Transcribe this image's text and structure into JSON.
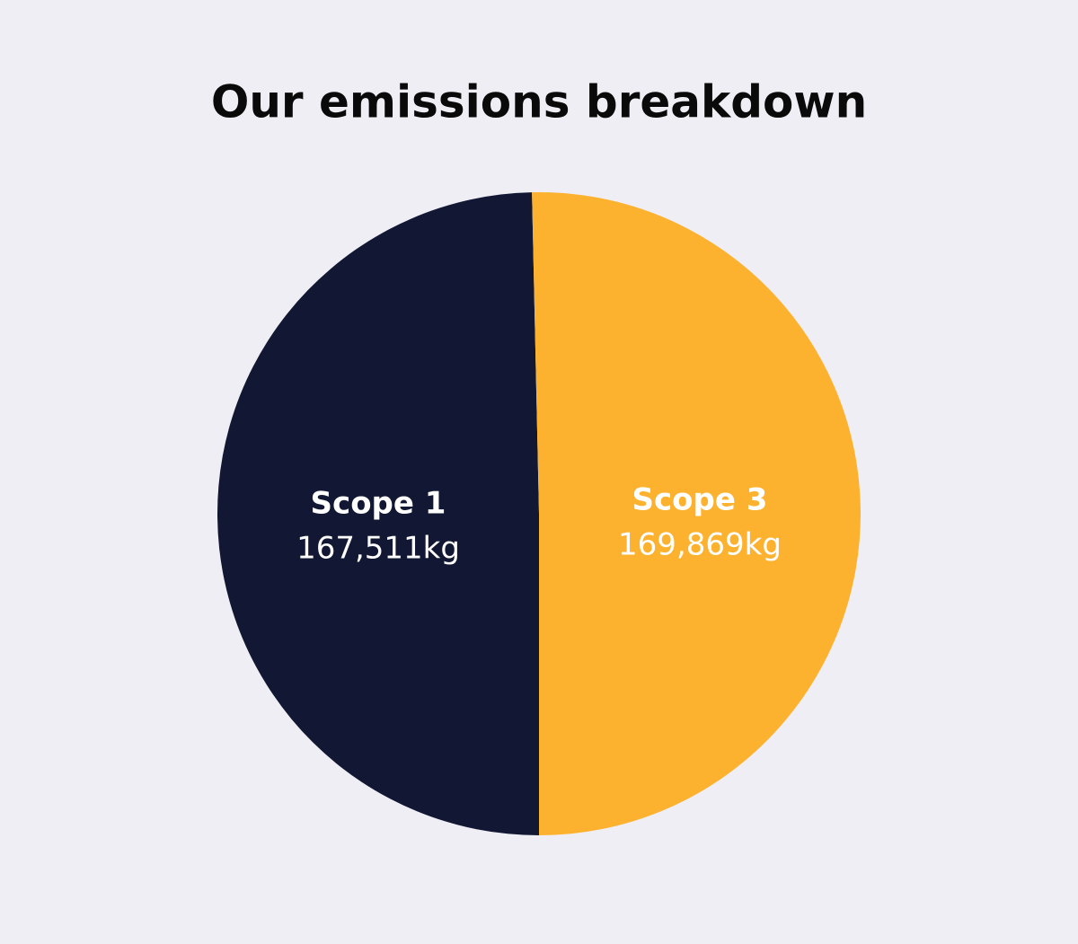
{
  "chart_data": {
    "type": "pie",
    "title": "Our emissions breakdown",
    "categories": [
      "Scope 1",
      "Scope 3"
    ],
    "values": [
      167511,
      169869
    ],
    "value_labels": [
      "167,511kg",
      "169,869kg"
    ],
    "colors": [
      "#121833",
      "#fdb22f"
    ]
  }
}
